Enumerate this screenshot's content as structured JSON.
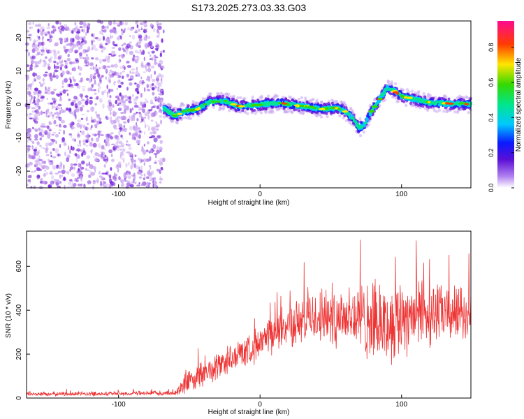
{
  "title": "S173.2025.273.03.33.G03",
  "chart_data": [
    {
      "type": "heatmap",
      "xlabel": "Height of straight line (km)",
      "ylabel": "Frequency (Hz)",
      "xlim": [
        -165,
        149
      ],
      "ylim": [
        -25,
        25
      ],
      "xticks": [
        -100,
        0,
        100
      ],
      "xtick_labels": [
        "-100",
        "0",
        "100"
      ],
      "yticks": [
        -20,
        -10,
        0,
        10,
        20
      ],
      "ytick_labels": [
        "-20",
        "-10",
        "0",
        "10",
        "20"
      ],
      "noise_region_x": [
        -165,
        -68
      ],
      "ridge": {
        "x": [
          -68,
          -60,
          -55,
          -45,
          -35,
          -25,
          -15,
          -5,
          5,
          15,
          25,
          35,
          45,
          55,
          62,
          66,
          70,
          74,
          78,
          82,
          86,
          90,
          95,
          100,
          110,
          120,
          130,
          140,
          149
        ],
        "freq": [
          -1.2,
          -3.5,
          -2.2,
          -1.5,
          0.8,
          1.0,
          -0.6,
          -0.3,
          0.2,
          0.4,
          -0.3,
          -0.8,
          -1.4,
          -1.0,
          -2.5,
          -4.5,
          -7.0,
          -6.0,
          -2.5,
          0.0,
          2.5,
          5.0,
          4.0,
          2.5,
          1.5,
          0.5,
          0.3,
          0.2,
          0.1
        ]
      },
      "colorbar": {
        "label": "Normalized spectral amplitude",
        "range": [
          0,
          0.95
        ],
        "ticks": [
          0,
          0.2,
          0.4,
          0.6,
          0.8
        ],
        "tick_labels": [
          "0.0",
          "0.2",
          "0.4",
          "0.6",
          "0.8"
        ]
      }
    },
    {
      "type": "line",
      "xlabel": "Height of straight line (km)",
      "ylabel": "SNR (10 * v/v)",
      "xlim": [
        -165,
        149
      ],
      "ylim": [
        0,
        760
      ],
      "xticks": [
        -100,
        0,
        100
      ],
      "xtick_labels": [
        "-100",
        "0",
        "100"
      ],
      "yticks": [
        0,
        200,
        400,
        600
      ],
      "ytick_labels": [
        "0",
        "200",
        "400",
        "600"
      ],
      "series": [
        {
          "name": "SNR",
          "color": "#ee3333",
          "envelope_x": [
            -165,
            -60,
            -55,
            -40,
            -20,
            0,
            20,
            40,
            60,
            70,
            80,
            90,
            100,
            110,
            130,
            149
          ],
          "envelope_mean": [
            18,
            22,
            60,
            110,
            180,
            250,
            330,
            370,
            380,
            360,
            340,
            330,
            380,
            390,
            380,
            385
          ],
          "envelope_spread": [
            12,
            12,
            60,
            70,
            80,
            90,
            110,
            150,
            180,
            200,
            200,
            210,
            220,
            200,
            150,
            140
          ]
        }
      ]
    }
  ],
  "colors": {
    "line": "#ee3333",
    "noise": "#9a55e0"
  }
}
